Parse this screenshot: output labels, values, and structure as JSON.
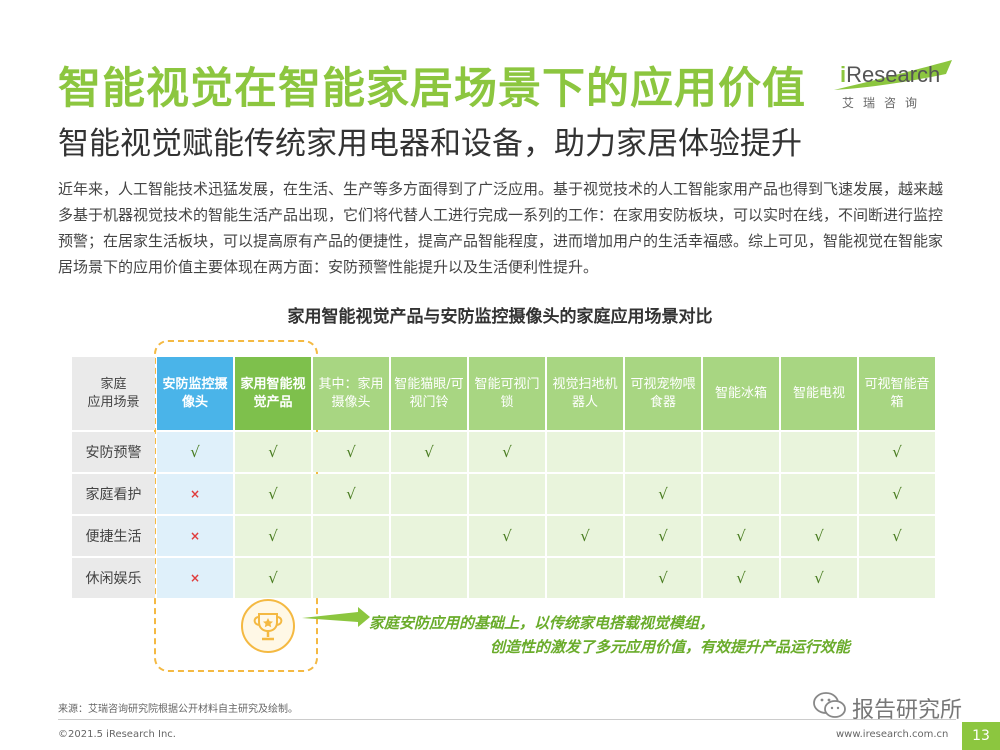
{
  "header": {
    "title": "智能视觉在智能家居场景下的应用价值",
    "subtitle": "智能视觉赋能传统家用电器和设备，助力家居体验提升"
  },
  "logo": {
    "brand_i": "i",
    "brand_rest": "Research",
    "brand_cn": "艾瑞咨询"
  },
  "intro": "近年来，人工智能技术迅猛发展，在生活、生产等多方面得到了广泛应用。基于视觉技术的人工智能家用产品也得到飞速发展，越来越多基于机器视觉技术的智能生活产品出现，它们将代替人工进行完成一系列的工作：在家用安防板块，可以实时在线，不间断进行监控预警；在居家生活板块，可以提高原有产品的便捷性，提高产品智能程度，进而增加用户的生活幸福感。综上可见，智能视觉在智能家居场景下的应用价值主要体现在两方面：安防预警性能提升以及生活便利性提升。",
  "table": {
    "title": "家用智能视觉产品与安防监控摄像头的家庭应用场景对比",
    "corner_label": "家庭\n应用场景",
    "columns": [
      "安防监控摄像头",
      "家用智能视觉产品",
      "其中：家用摄像头",
      "智能猫眼/可视门铃",
      "智能可视门锁",
      "视觉扫地机器人",
      "可视宠物喂食器",
      "智能冰箱",
      "智能电视",
      "可视智能音箱"
    ],
    "rows": [
      {
        "label": "安防预警",
        "cells": [
          "√",
          "√",
          "√",
          "√",
          "√",
          "",
          "",
          "",
          "",
          "√"
        ]
      },
      {
        "label": "家庭看护",
        "cells": [
          "×",
          "√",
          "√",
          "",
          "",
          "",
          "√",
          "",
          "",
          "√"
        ]
      },
      {
        "label": "便捷生活",
        "cells": [
          "×",
          "√",
          "",
          "",
          "√",
          "√",
          "√",
          "√",
          "√",
          "√"
        ]
      },
      {
        "label": "休闲娱乐",
        "cells": [
          "×",
          "√",
          "",
          "",
          "",
          "",
          "√",
          "√",
          "√",
          ""
        ]
      }
    ]
  },
  "callout": {
    "line1": "家庭安防应用的基础上，以传统家电搭载视觉模组，",
    "line2": "创造性的激发了多元应用价值，有效提升产品运行效能"
  },
  "footer": {
    "source": "来源：艾瑞咨询研究院根据公开材料自主研究及绘制。",
    "copyright": "©2021.5 iResearch Inc.",
    "site": "www.iresearch.com.cn",
    "page": "13",
    "watermark": "报告研究所"
  },
  "colors": {
    "accent_green": "#8cc63f",
    "security_blue": "#4ab4e9",
    "header_green": "#a8d682",
    "cell_green": "#e9f4dc",
    "dash_orange": "#f4b942"
  }
}
